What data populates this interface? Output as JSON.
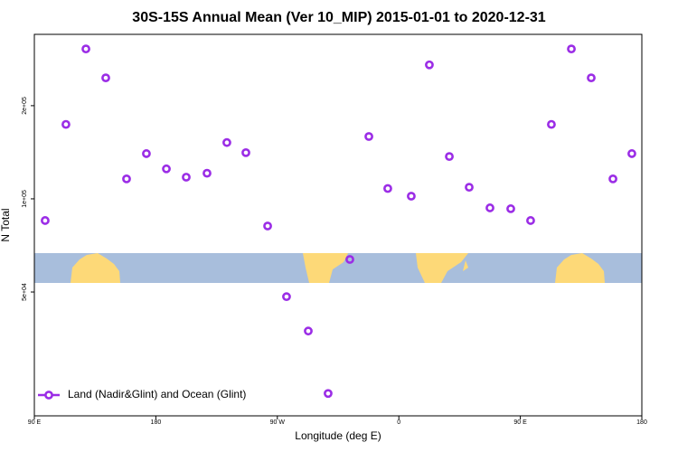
{
  "chart_data": {
    "type": "scatter",
    "title": "30S-15S Annual Mean (Ver 10_MIP)   2015-01-01 to 2020-12-31",
    "x_label": "Longitude (deg E)",
    "y_label": "N Total",
    "yscale": "log",
    "xlim": [
      90,
      540
    ],
    "ylim": [
      19900,
      340000
    ],
    "xticks": [
      {
        "value": 90,
        "label": "90 E"
      },
      180,
      {
        "value": 270,
        "label": "90 W"
      },
      {
        "value": 360,
        "label": "0"
      },
      {
        "value": 450,
        "label": "90 E"
      },
      {
        "value": 540,
        "label": "180"
      }
    ],
    "yticks": [
      {
        "value": 50000,
        "label": "5e+04"
      },
      {
        "value": 100000,
        "label": "1e+05"
      },
      {
        "value": 200000,
        "label": "2e+05"
      }
    ],
    "legend_position": "lower left",
    "series": [
      {
        "name": "Land (Nadir&Glint) and Ocean (Glint)",
        "color": "#9b2de6",
        "x": [
          98,
          113.4,
          128.2,
          142.9,
          158.3,
          173,
          187.8,
          202.5,
          217.9,
          232.6,
          246.7,
          262.8,
          276.8,
          292.9,
          307.6,
          323.7,
          337.8,
          351.8,
          369.2,
          382.6,
          397.4,
          412.1,
          427.5,
          442.9,
          457.6,
          473,
          487.8,
          502.5,
          518.6,
          532.6
        ],
        "values": [
          85100,
          174000,
          305000,
          246000,
          116000,
          140000,
          125000,
          117500,
          121000,
          152000,
          141000,
          81700,
          48300,
          37400,
          23500,
          63700,
          159000,
          108000,
          102000,
          271000,
          137000,
          109000,
          93500,
          92900,
          85100,
          174000,
          305000,
          246000,
          116000,
          140000
        ]
      }
    ]
  }
}
